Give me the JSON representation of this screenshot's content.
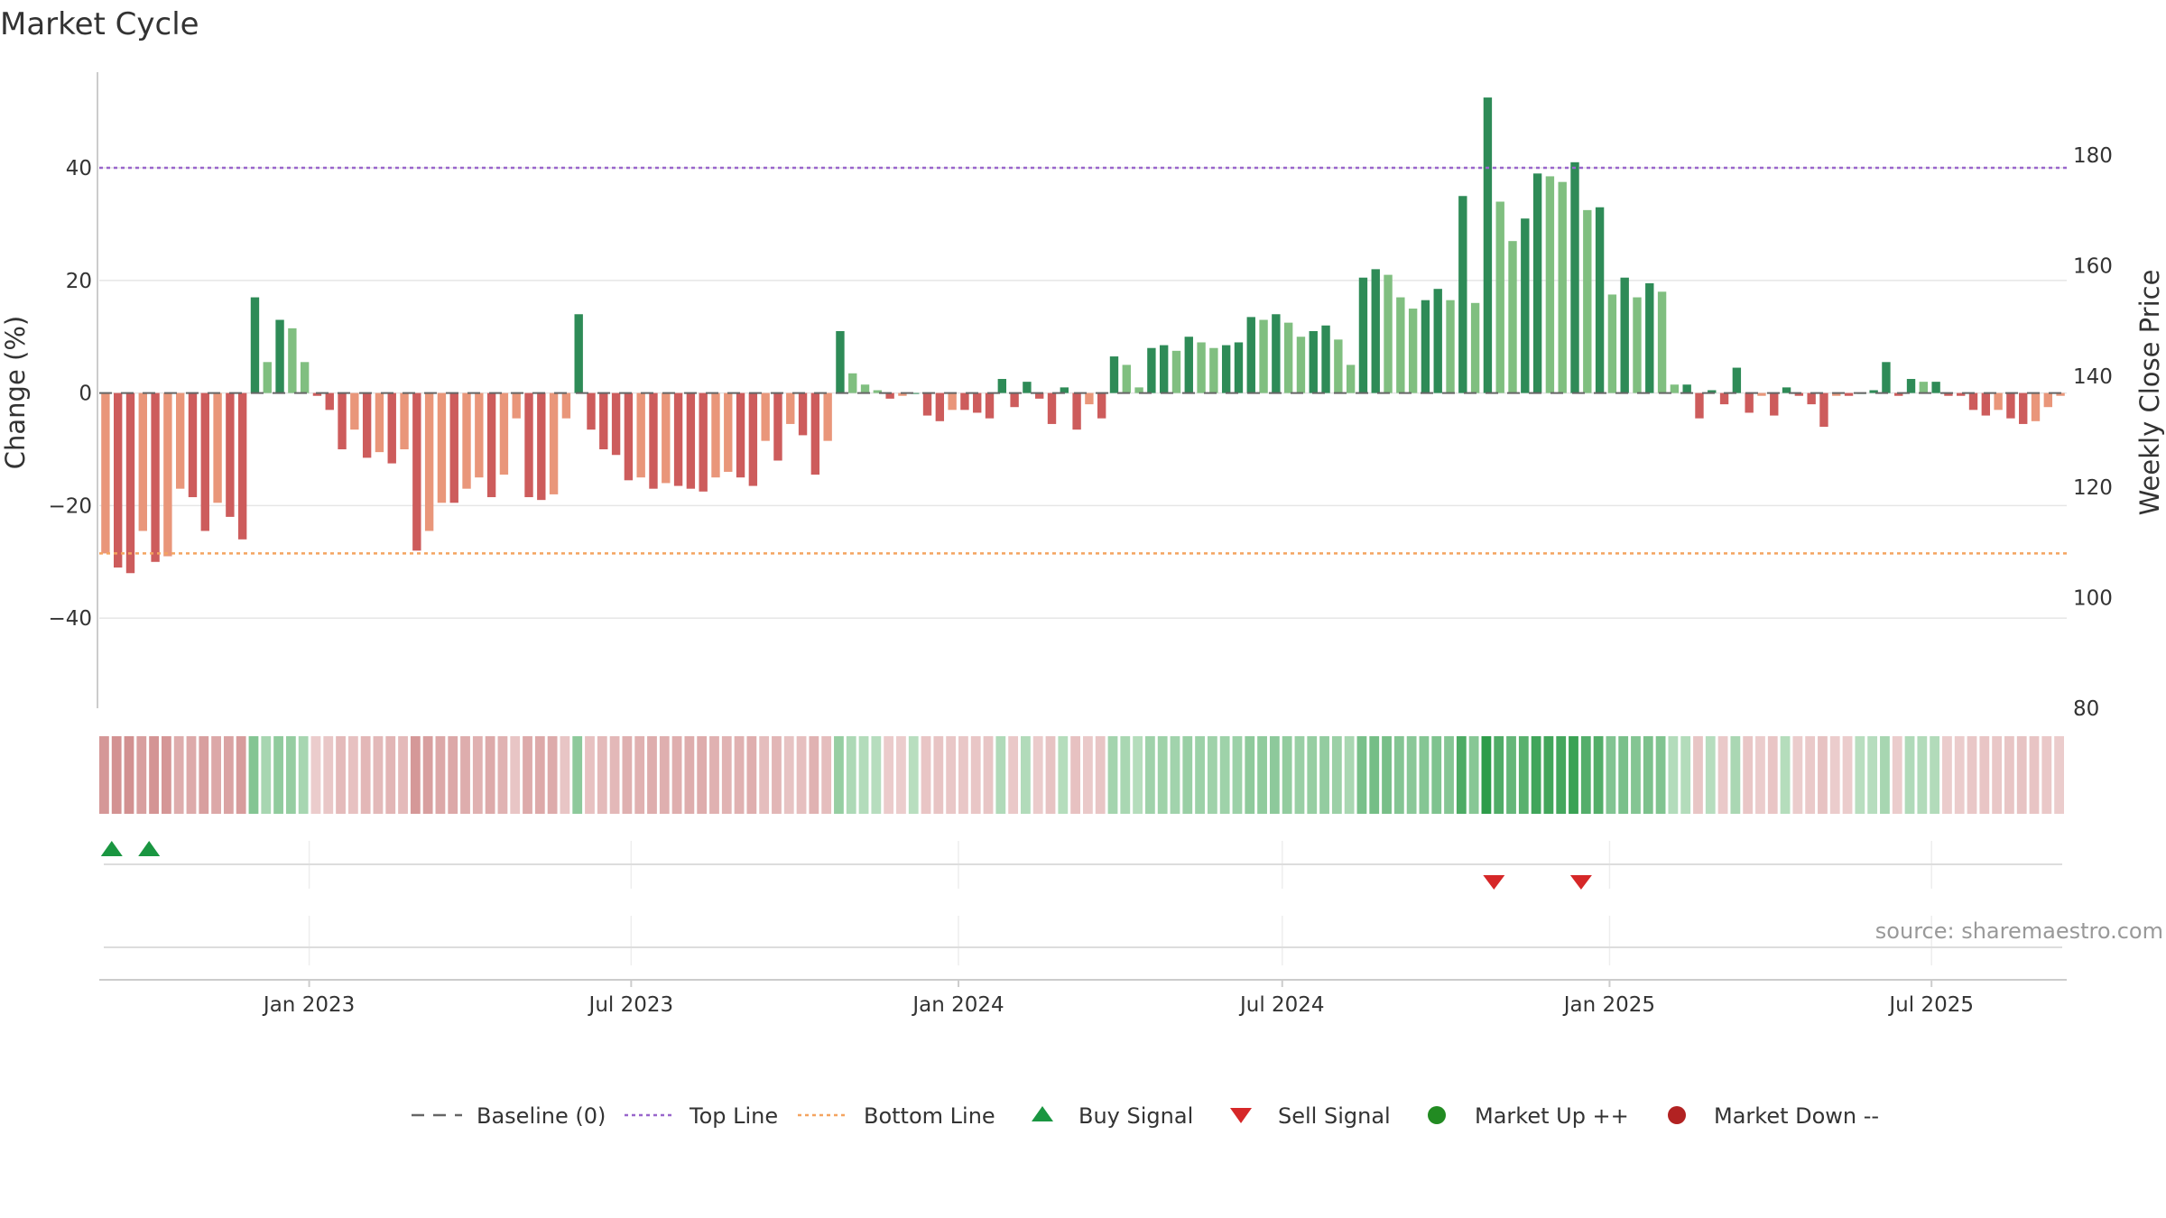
{
  "chart_data": {
    "type": "bar",
    "title": "Market Cycle",
    "ylabel_left": "Change (%)",
    "ylabel_right": "Weekly Close Price",
    "ylim_left": [
      -56,
      57
    ],
    "ylim_right": [
      80,
      195
    ],
    "yticks_left": [
      40,
      20,
      0,
      -20,
      -40
    ],
    "yticks_left_labels": [
      "40",
      "20",
      "0",
      "−20",
      "−40"
    ],
    "yticks_right": [
      180,
      160,
      140,
      120,
      100,
      80
    ],
    "yticks_right_labels": [
      "180",
      "160",
      "140",
      "120",
      "100",
      "80"
    ],
    "top_line": 40,
    "bottom_line": -28.5,
    "grid": true,
    "x_start": "2022-09-05",
    "x_end": "2025-09-15",
    "xtick_labels": [
      {
        "date": "2023-01-01",
        "label": "Jan 2023"
      },
      {
        "date": "2023-07-01",
        "label": "Jul 2023"
      },
      {
        "date": "2024-01-01",
        "label": "Jan 2024"
      },
      {
        "date": "2024-07-01",
        "label": "Jul 2024"
      },
      {
        "date": "2025-01-01",
        "label": "Jan 2025"
      },
      {
        "date": "2025-07-01",
        "label": "Jul 2025"
      }
    ],
    "series": [
      {
        "values": [
          -28.5,
          -31,
          -32,
          -24.5,
          -30,
          -29,
          -17,
          -18.5,
          -24.5,
          -19.5,
          -22,
          -26,
          17,
          5.5,
          13,
          11.5,
          5.5,
          -0.5,
          -3,
          -10,
          -6.5,
          -11.5,
          -10.5,
          -12.5,
          -10,
          -28,
          -24.5,
          -19.5,
          -19.5,
          -17,
          -15,
          -18.5,
          -14.5,
          -4.5,
          -18.5,
          -19,
          -18,
          -4.5,
          14,
          -6.5,
          -10,
          -11,
          -15.5,
          -15,
          -17,
          -16,
          -16.5,
          -17,
          -17.5,
          -15,
          -14,
          -15,
          -16.5,
          -8.5,
          -12,
          -5.5,
          -7.5,
          -14.5,
          -8.5,
          11,
          3.5,
          1.5,
          0.5,
          -1,
          -0.5,
          0,
          -4,
          -5,
          -3,
          -3,
          -3.5,
          -4.5,
          2.5,
          -2.5,
          2,
          -1,
          -5.5,
          1,
          -6.5,
          -2,
          -4.5,
          6.5,
          5,
          1,
          8,
          8.5,
          7.5,
          10,
          9,
          8,
          8.5,
          9,
          13.5,
          13,
          14,
          12.5,
          10,
          11,
          12,
          9.5,
          5,
          20.5,
          22,
          21,
          17,
          15,
          16.5,
          18.5,
          16.5,
          35,
          16,
          52.5,
          34,
          27,
          31,
          39,
          38.5,
          37.5,
          41,
          32.5,
          33,
          17.5,
          20.5,
          17,
          19.5,
          18,
          1.5,
          1.5,
          -4.5,
          0.5,
          -2,
          4.5,
          -3.5,
          -0.5,
          -4,
          1,
          -0.5,
          -2,
          -6,
          -0.5,
          -0.5,
          0,
          0.5,
          5.5,
          -0.5,
          2.5,
          2,
          2,
          -0.5,
          -0.5,
          -3,
          -4,
          -3,
          -4.5,
          -5.5,
          -5,
          -2.5,
          -0.5
        ]
      }
    ],
    "buy_signals": [
      "2022-09-12",
      "2022-10-03"
    ],
    "sell_signals": [
      "2024-10-28",
      "2024-12-16"
    ],
    "colors": {
      "strong_up": "#2e8b57",
      "up": "#80bf80",
      "strong_down": "#cd5c5c",
      "down": "#e9967a",
      "top_line": "#9966cc",
      "bottom_line": "#f4a460",
      "buy": "#1a9641",
      "sell": "#d62728",
      "market_up": "#228b22",
      "market_down": "#b22222",
      "baseline": "#666666"
    },
    "legend": [
      {
        "label": "Baseline (0)",
        "symbol": "dash"
      },
      {
        "label": "Top Line",
        "symbol": "dotted-purple"
      },
      {
        "label": "Bottom Line",
        "symbol": "dotted-orange"
      },
      {
        "label": "Buy Signal",
        "symbol": "triangle-up"
      },
      {
        "label": "Sell Signal",
        "symbol": "triangle-down"
      },
      {
        "label": "Market Up ++",
        "symbol": "circle-green"
      },
      {
        "label": "Market Down --",
        "symbol": "circle-red"
      }
    ],
    "legend_position": "bottom-center",
    "source": "source: sharemaestro.com"
  }
}
